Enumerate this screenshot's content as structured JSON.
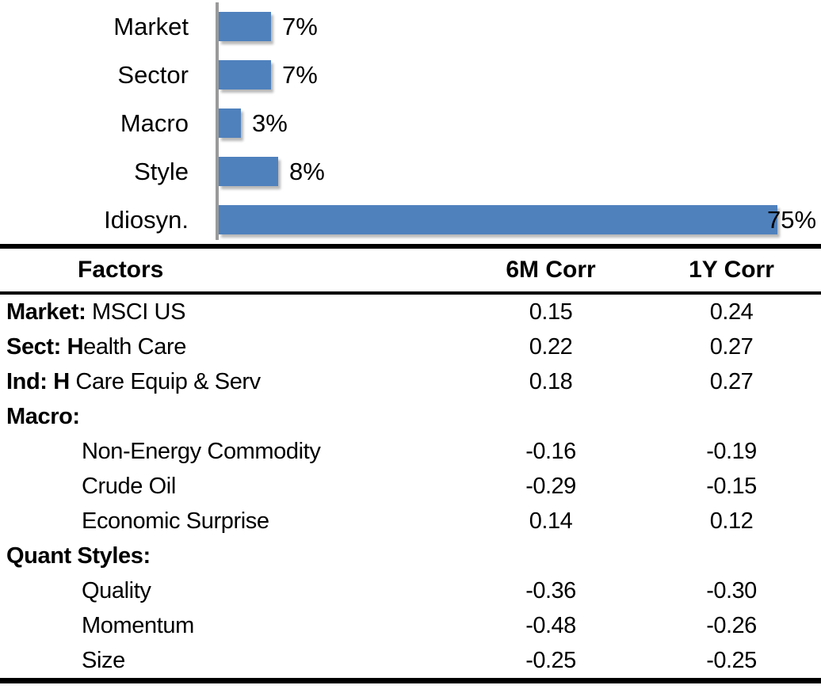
{
  "colors": {
    "bar": "#4F81BD",
    "axis": "#9A9A9A",
    "text": "#000000"
  },
  "chart_data": {
    "type": "bar",
    "orientation": "horizontal",
    "title": "",
    "xlabel": "",
    "ylabel": "",
    "categories": [
      "Market",
      "Sector",
      "Macro",
      "Style",
      "Idiosyn."
    ],
    "values": [
      7,
      7,
      3,
      8,
      75
    ],
    "value_labels": [
      "7%",
      "7%",
      "3%",
      "8%",
      "75%"
    ],
    "unit": "percent",
    "xlim": [
      0,
      80
    ],
    "grid": false,
    "legend": false
  },
  "table": {
    "headers": {
      "factors": "Factors",
      "corr_6m": "6M Corr",
      "corr_1y": "1Y Corr"
    },
    "rows": [
      {
        "label_bold": "Market:",
        "label_rest": " MSCI US",
        "corr_6m": "0.15",
        "corr_1y": "0.24",
        "sub": false
      },
      {
        "label_bold": "Sect: H",
        "label_rest": "ealth Care",
        "corr_6m": "0.22",
        "corr_1y": "0.27",
        "sub": false
      },
      {
        "label_bold": "Ind: H",
        "label_rest": " Care Equip & Serv",
        "corr_6m": "0.18",
        "corr_1y": "0.27",
        "sub": false
      },
      {
        "label_bold": "Macro:",
        "label_rest": "",
        "corr_6m": "",
        "corr_1y": "",
        "sub": false
      },
      {
        "label_bold": "",
        "label_rest": "Non-Energy Commodity",
        "corr_6m": "-0.16",
        "corr_1y": "-0.19",
        "sub": true
      },
      {
        "label_bold": "",
        "label_rest": "Crude Oil",
        "corr_6m": "-0.29",
        "corr_1y": "-0.15",
        "sub": true
      },
      {
        "label_bold": "",
        "label_rest": "Economic Surprise",
        "corr_6m": "0.14",
        "corr_1y": "0.12",
        "sub": true
      },
      {
        "label_bold": "Quant Styles:",
        "label_rest": "",
        "corr_6m": "",
        "corr_1y": "",
        "sub": false
      },
      {
        "label_bold": "",
        "label_rest": "Quality",
        "corr_6m": "-0.36",
        "corr_1y": "-0.30",
        "sub": true
      },
      {
        "label_bold": "",
        "label_rest": "Momentum",
        "corr_6m": "-0.48",
        "corr_1y": "-0.26",
        "sub": true
      },
      {
        "label_bold": "",
        "label_rest": "Size",
        "corr_6m": "-0.25",
        "corr_1y": "-0.25",
        "sub": true
      }
    ]
  }
}
